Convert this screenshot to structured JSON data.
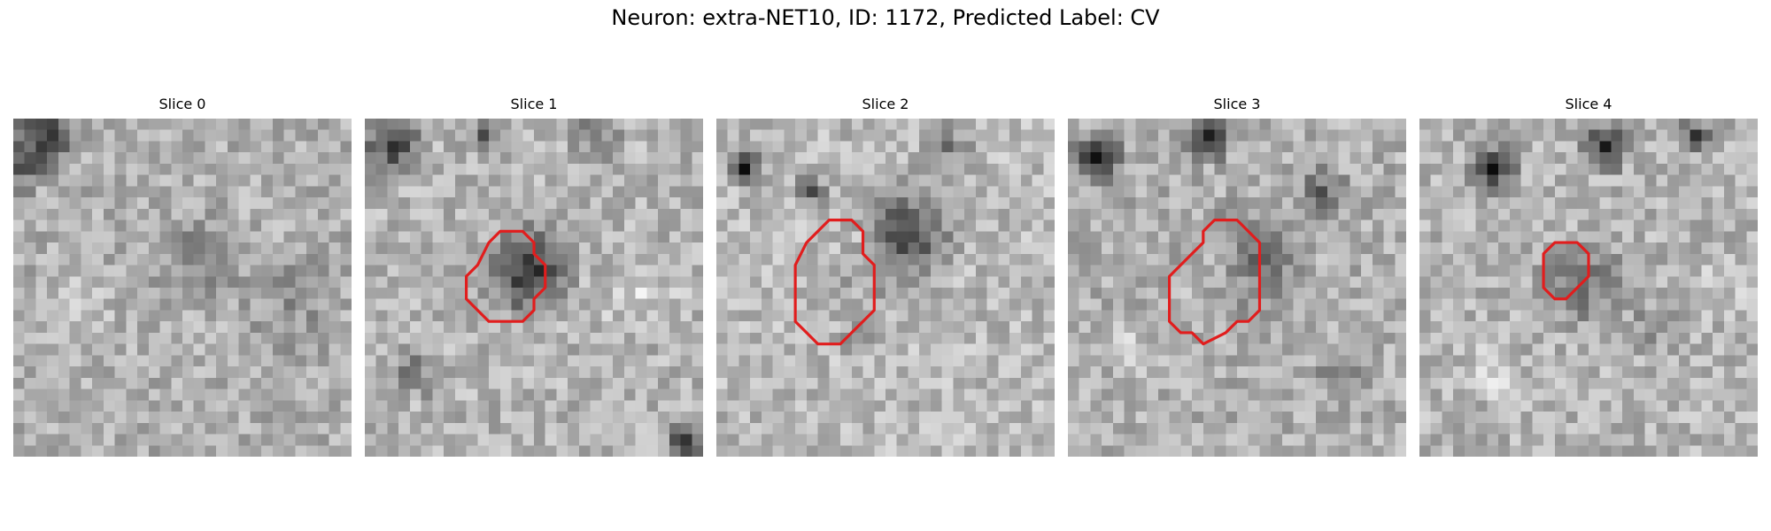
{
  "title": "Neuron: extra-NET10, ID: 1172, Predicted Label: CV",
  "panels": [
    {
      "title": "Slice 0",
      "contour": []
    },
    {
      "title": "Slice 1",
      "contour": [
        [
          11,
          11
        ],
        [
          12,
          10
        ],
        [
          14,
          10
        ],
        [
          15,
          11
        ],
        [
          15,
          12
        ],
        [
          16,
          13
        ],
        [
          16,
          15
        ],
        [
          15,
          16
        ],
        [
          15,
          17
        ],
        [
          14,
          18
        ],
        [
          11,
          18
        ],
        [
          10,
          17
        ],
        [
          9,
          16
        ],
        [
          9,
          14
        ],
        [
          10,
          13
        ]
      ]
    },
    {
      "title": "Slice 2",
      "contour": [
        [
          10,
          9
        ],
        [
          12,
          9
        ],
        [
          13,
          10
        ],
        [
          13,
          12
        ],
        [
          14,
          13
        ],
        [
          14,
          17
        ],
        [
          13,
          18
        ],
        [
          12,
          19
        ],
        [
          11,
          20
        ],
        [
          9,
          20
        ],
        [
          8,
          19
        ],
        [
          7,
          18
        ],
        [
          7,
          16
        ],
        [
          7,
          13
        ],
        [
          8,
          11
        ]
      ]
    },
    {
      "title": "Slice 3",
      "contour": [
        [
          13,
          9
        ],
        [
          15,
          9
        ],
        [
          16,
          10
        ],
        [
          17,
          11
        ],
        [
          17,
          17
        ],
        [
          16,
          18
        ],
        [
          15,
          18
        ],
        [
          14,
          19
        ],
        [
          12,
          20
        ],
        [
          11,
          19
        ],
        [
          10,
          19
        ],
        [
          9,
          18
        ],
        [
          9,
          14
        ],
        [
          10,
          13
        ],
        [
          11,
          12
        ],
        [
          12,
          11
        ],
        [
          12,
          10
        ]
      ]
    },
    {
      "title": "Slice 4",
      "contour": [
        [
          12,
          11
        ],
        [
          14,
          11
        ],
        [
          15,
          12
        ],
        [
          15,
          14
        ],
        [
          14,
          15
        ],
        [
          13,
          16
        ],
        [
          12,
          16
        ],
        [
          11,
          15
        ],
        [
          11,
          13
        ],
        [
          11,
          12
        ]
      ]
    }
  ],
  "contour_color": "#e11d1d"
}
